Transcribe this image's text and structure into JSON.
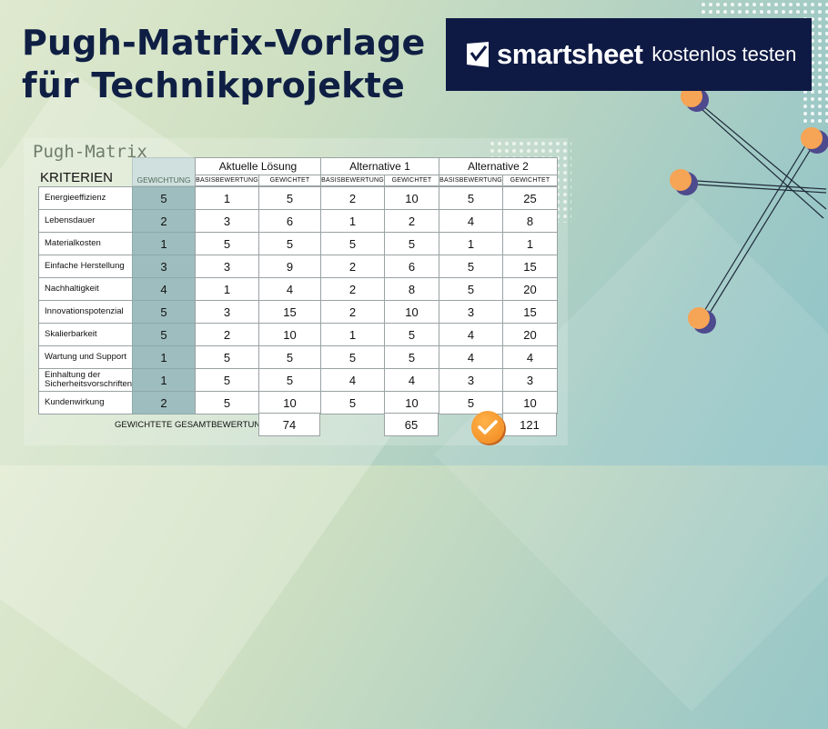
{
  "title_lines": [
    "Pugh-Matrix-Vorlage",
    "für Technikprojekte"
  ],
  "brand": {
    "name": "smartsheet",
    "cta": "kostenlos testen",
    "bg_color": "#0f1a44"
  },
  "matrix": {
    "title": "Pugh-Matrix",
    "criteria_header": "KRITERIEN",
    "weight_header": "GEWICHTUNG",
    "groups": [
      "Aktuelle Lösung",
      "Alternative 1",
      "Alternative 2"
    ],
    "sub_headers": [
      "BASISBEWERTUNG",
      "GEWICHTET"
    ],
    "rows": [
      {
        "criterion": "Energieeffizienz",
        "weight": "5",
        "values": [
          "1",
          "5",
          "2",
          "10",
          "5",
          "25"
        ]
      },
      {
        "criterion": "Lebensdauer",
        "weight": "2",
        "values": [
          "3",
          "6",
          "1",
          "2",
          "4",
          "8"
        ]
      },
      {
        "criterion": "Materialkosten",
        "weight": "1",
        "values": [
          "5",
          "5",
          "5",
          "5",
          "1",
          "1"
        ]
      },
      {
        "criterion": "Einfache Herstellung",
        "weight": "3",
        "values": [
          "3",
          "9",
          "2",
          "6",
          "5",
          "15"
        ]
      },
      {
        "criterion": "Nachhaltigkeit",
        "weight": "4",
        "values": [
          "1",
          "4",
          "2",
          "8",
          "5",
          "20"
        ]
      },
      {
        "criterion": "Innovationspotenzial",
        "weight": "5",
        "values": [
          "3",
          "15",
          "2",
          "10",
          "3",
          "15"
        ]
      },
      {
        "criterion": "Skalierbarkeit",
        "weight": "5",
        "values": [
          "2",
          "10",
          "1",
          "5",
          "4",
          "20"
        ]
      },
      {
        "criterion": "Wartung und Support",
        "weight": "1",
        "values": [
          "5",
          "5",
          "5",
          "5",
          "4",
          "4"
        ]
      },
      {
        "criterion": "Einhaltung der Sicherheitsvorschriften",
        "weight": "1",
        "values": [
          "5",
          "5",
          "4",
          "4",
          "3",
          "3"
        ]
      },
      {
        "criterion": "Kundenwirkung",
        "weight": "2",
        "values": [
          "5",
          "10",
          "5",
          "10",
          "5",
          "10"
        ]
      }
    ],
    "total_label": "GEWICHTETE GESAMTBEWERTUNG",
    "totals": [
      "74",
      "65",
      "121"
    ],
    "winner_icon": "checkmark-badge-icon",
    "accent_color": "#f0871c",
    "weight_column_color": "#9ebdbe"
  },
  "decor_icon": "molecule-network-icon"
}
